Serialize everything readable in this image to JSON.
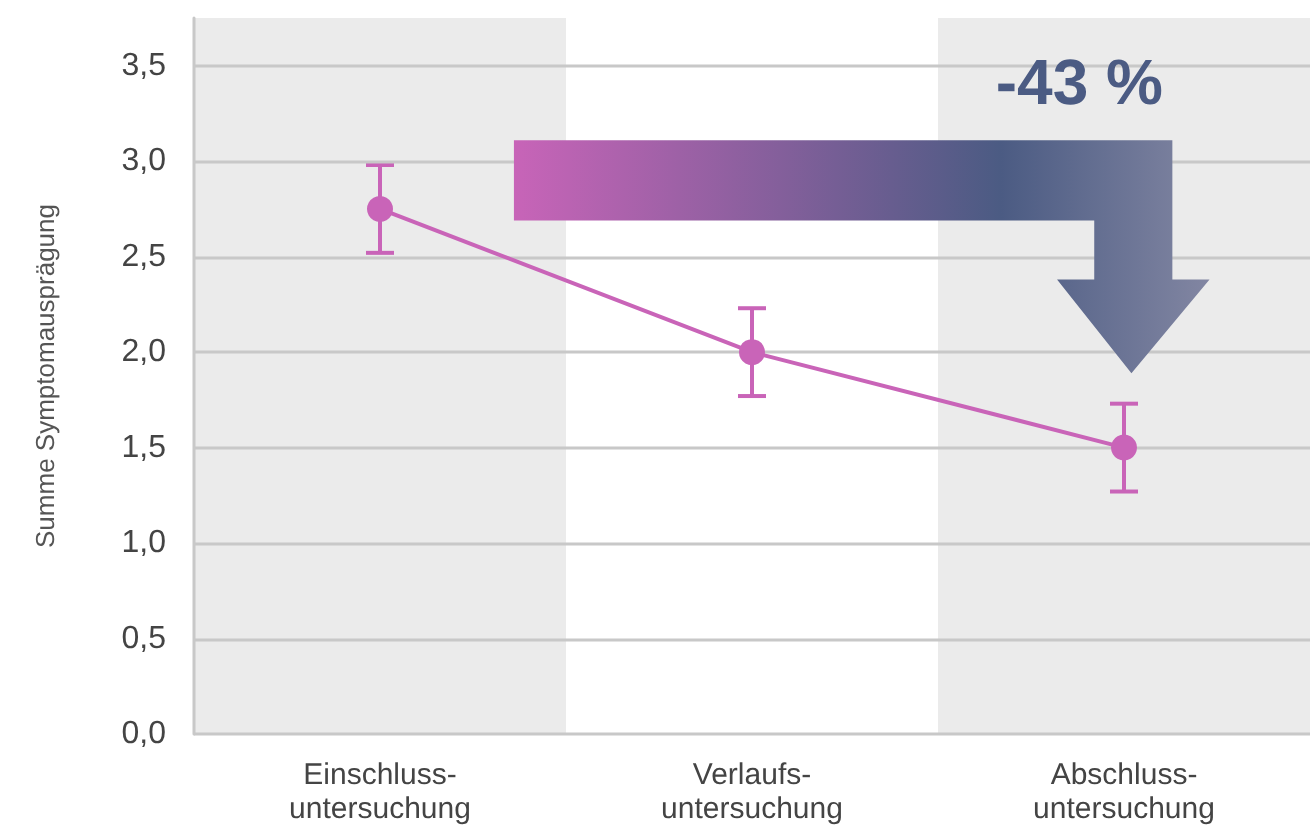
{
  "chart_data": {
    "type": "line",
    "ylabel": "Summe Symptomausprägung",
    "categories": [
      "Einschluss-\nuntersuchung",
      "Verlaufs-\nuntersuchung",
      "Abschluss-\nuntersuchung"
    ],
    "series": [
      {
        "color": "#c964b8",
        "values": [
          2.75,
          2.0,
          1.5
        ],
        "errors": [
          0.23,
          0.23,
          0.23
        ]
      }
    ],
    "ylim": [
      0,
      3.75
    ],
    "yticks": [
      {
        "value": 0,
        "label": "0,0"
      },
      {
        "value": 0.5,
        "label": "0,5"
      },
      {
        "value": 1,
        "label": "1,0"
      },
      {
        "value": 1.5,
        "label": "1,5"
      },
      {
        "value": 2,
        "label": "2,0"
      },
      {
        "value": 2.5,
        "label": "2,5"
      },
      {
        "value": 3,
        "label": "3,0"
      },
      {
        "value": 3.5,
        "label": "3,5"
      }
    ],
    "bands": [
      {
        "axis": "x",
        "from": "Einschluss-\nuntersuchung",
        "to": "Einschluss-\nuntersuchung",
        "color": "#ebebeb"
      },
      {
        "axis": "x",
        "from": "Abschluss-\nuntersuchung",
        "to": "Abschluss-\nuntersuchung",
        "color": "#ebebeb"
      }
    ],
    "annotations": [
      "-43 %"
    ],
    "grid": "y",
    "marker": "circle",
    "line_style": "solid"
  }
}
